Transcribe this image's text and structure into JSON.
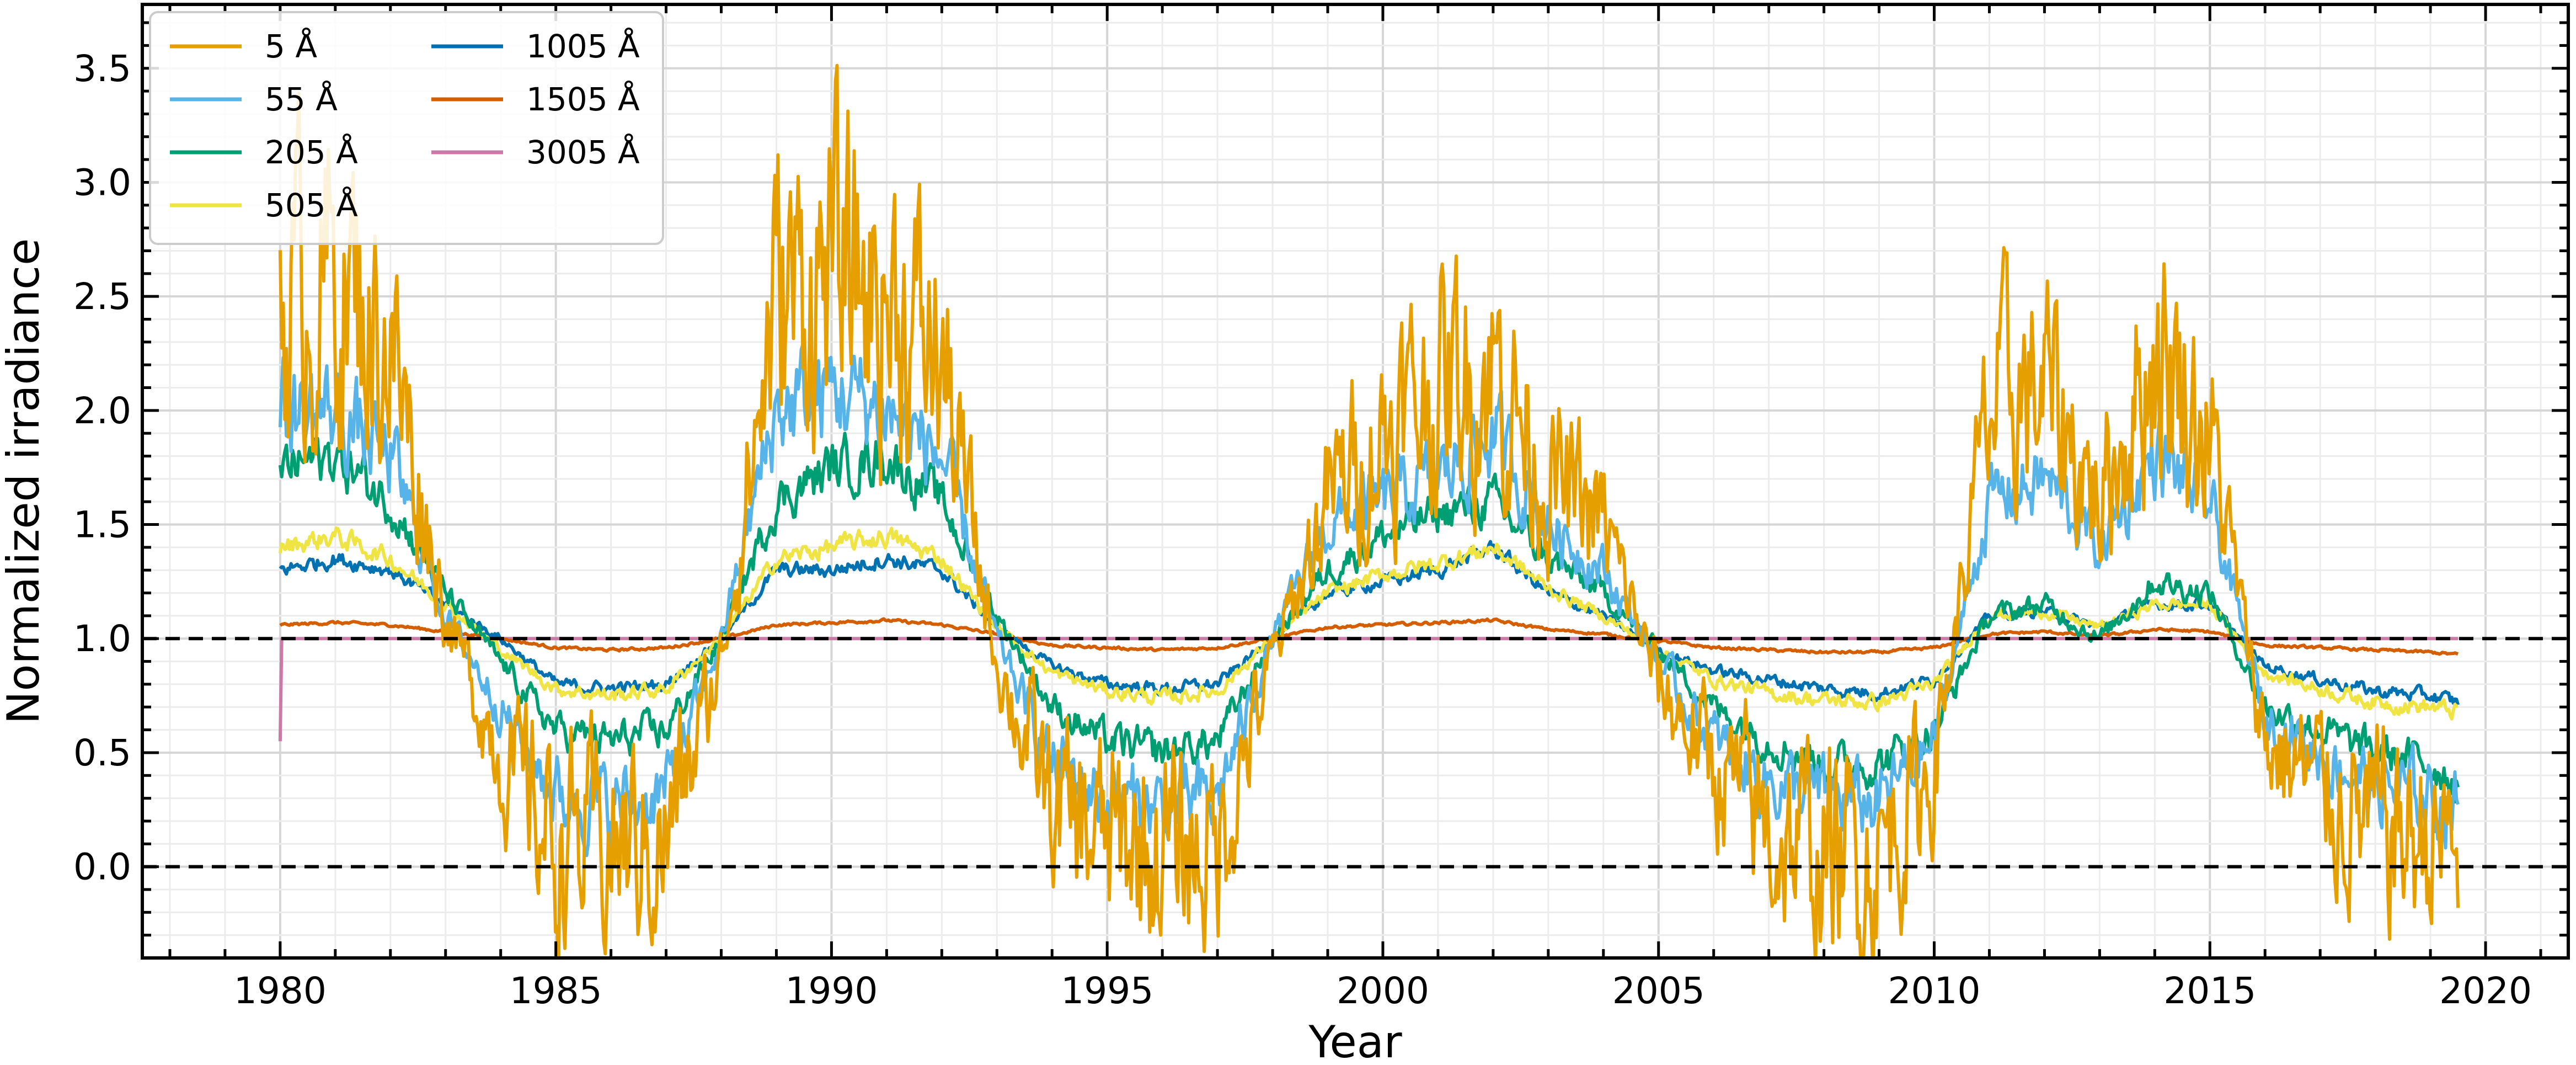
{
  "chart_data": {
    "type": "line",
    "title": "",
    "xlabel": "Year",
    "ylabel": "Normalized irradiance",
    "xlim": [
      1977.5,
      2021.5
    ],
    "ylim": [
      -0.4,
      3.78
    ],
    "xticks": [
      1980,
      1985,
      1990,
      1995,
      2000,
      2005,
      2010,
      2015,
      2020
    ],
    "yticks": [
      0.0,
      0.5,
      1.0,
      1.5,
      2.0,
      2.5,
      3.0,
      3.5
    ],
    "xtick_labels": [
      "1980",
      "1985",
      "1990",
      "1995",
      "2000",
      "2005",
      "2010",
      "2015",
      "2020"
    ],
    "ytick_labels": [
      "0.0",
      "0.5",
      "1.0",
      "1.5",
      "2.0",
      "2.5",
      "3.0",
      "3.5"
    ],
    "grid": true,
    "legend": {
      "placement": "top-left",
      "columns": 2
    },
    "reference_lines": [
      {
        "y": 1.0,
        "style": "dashed",
        "color": "#000000"
      },
      {
        "y": 0.0,
        "style": "dashed",
        "color": "#000000"
      }
    ],
    "x": [
      1980.0,
      1981.0,
      1982.0,
      1983.0,
      1984.0,
      1985.0,
      1986.0,
      1987.0,
      1988.0,
      1989.0,
      1990.0,
      1991.0,
      1992.0,
      1993.0,
      1994.0,
      1995.0,
      1996.0,
      1997.0,
      1998.0,
      1999.0,
      2000.0,
      2001.0,
      2002.0,
      2003.0,
      2004.0,
      2005.0,
      2006.0,
      2007.0,
      2008.0,
      2009.0,
      2010.0,
      2011.0,
      2012.0,
      2013.0,
      2014.0,
      2015.0,
      2016.0,
      2017.0,
      2018.0,
      2019.0,
      2019.5
    ],
    "series": [
      {
        "name": "5 Å",
        "color": "#E69F00",
        "noise": 0.55,
        "values": [
          2.5,
          2.6,
          2.3,
          1.1,
          0.5,
          0.1,
          0.08,
          0.1,
          0.9,
          2.5,
          2.6,
          2.5,
          2.2,
          0.9,
          0.25,
          0.1,
          0.06,
          0.1,
          0.9,
          1.6,
          1.9,
          2.1,
          2.2,
          1.7,
          1.5,
          0.8,
          0.45,
          0.15,
          0.05,
          0.06,
          0.45,
          2.0,
          2.1,
          1.6,
          2.3,
          1.9,
          0.55,
          0.35,
          0.15,
          0.12,
          0.08
        ]
      },
      {
        "name": "55 Å",
        "color": "#56B4E9",
        "noise": 0.25,
        "values": [
          2.0,
          2.0,
          1.8,
          1.1,
          0.7,
          0.32,
          0.27,
          0.32,
          1.0,
          2.0,
          2.1,
          2.0,
          1.8,
          1.0,
          0.45,
          0.3,
          0.26,
          0.3,
          1.0,
          1.5,
          1.6,
          1.7,
          1.9,
          1.5,
          1.3,
          0.9,
          0.55,
          0.38,
          0.3,
          0.28,
          0.55,
          1.6,
          1.7,
          1.4,
          1.8,
          1.6,
          0.65,
          0.5,
          0.35,
          0.3,
          0.27
        ]
      },
      {
        "name": "205 Å",
        "color": "#009E73",
        "noise": 0.16,
        "values": [
          1.75,
          1.8,
          1.6,
          1.2,
          0.9,
          0.6,
          0.55,
          0.6,
          1.0,
          1.6,
          1.75,
          1.8,
          1.6,
          1.1,
          0.7,
          0.55,
          0.5,
          0.55,
          1.0,
          1.3,
          1.45,
          1.55,
          1.6,
          1.35,
          1.2,
          0.95,
          0.7,
          0.55,
          0.45,
          0.45,
          0.6,
          1.1,
          1.15,
          1.0,
          1.25,
          1.2,
          0.7,
          0.6,
          0.5,
          0.45,
          0.38
        ]
      },
      {
        "name": "505 Å",
        "color": "#F0E442",
        "noise": 0.09,
        "values": [
          1.4,
          1.45,
          1.35,
          1.15,
          0.95,
          0.78,
          0.75,
          0.78,
          1.0,
          1.35,
          1.4,
          1.45,
          1.35,
          1.05,
          0.85,
          0.77,
          0.74,
          0.77,
          1.0,
          1.2,
          1.28,
          1.33,
          1.4,
          1.22,
          1.1,
          0.95,
          0.82,
          0.76,
          0.73,
          0.72,
          0.8,
          1.1,
          1.12,
          1.05,
          1.15,
          1.15,
          0.85,
          0.78,
          0.72,
          0.7,
          0.68
        ]
      },
      {
        "name": "1005 Å",
        "color": "#0072B2",
        "noise": 0.08,
        "values": [
          1.3,
          1.35,
          1.3,
          1.15,
          1.0,
          0.8,
          0.78,
          0.8,
          1.0,
          1.3,
          1.3,
          1.35,
          1.3,
          1.05,
          0.88,
          0.8,
          0.78,
          0.8,
          1.0,
          1.2,
          1.25,
          1.3,
          1.4,
          1.2,
          1.1,
          0.95,
          0.86,
          0.82,
          0.78,
          0.76,
          0.82,
          1.1,
          1.12,
          1.05,
          1.15,
          1.15,
          0.88,
          0.82,
          0.77,
          0.75,
          0.72
        ]
      },
      {
        "name": "1505 Å",
        "color": "#D55E00",
        "noise": 0.025,
        "values": [
          1.06,
          1.07,
          1.06,
          1.03,
          1.0,
          0.96,
          0.95,
          0.96,
          1.0,
          1.06,
          1.07,
          1.08,
          1.06,
          1.02,
          0.97,
          0.96,
          0.95,
          0.96,
          1.0,
          1.05,
          1.06,
          1.07,
          1.08,
          1.04,
          1.02,
          0.99,
          0.96,
          0.95,
          0.94,
          0.94,
          0.96,
          1.02,
          1.03,
          1.01,
          1.04,
          1.03,
          0.97,
          0.96,
          0.95,
          0.94,
          0.93
        ]
      },
      {
        "name": "3005 Å",
        "color": "#CC79A7",
        "noise": 0.0,
        "values": [
          1.0,
          1.0,
          1.0,
          1.0,
          1.0,
          1.0,
          1.0,
          1.0,
          1.0,
          1.0,
          1.0,
          1.0,
          1.0,
          1.0,
          1.0,
          1.0,
          1.0,
          1.0,
          1.0,
          1.0,
          1.0,
          1.0,
          1.0,
          1.0,
          1.0,
          1.0,
          1.0,
          1.0,
          1.0,
          1.0,
          1.0,
          1.0,
          1.0,
          1.0,
          1.0,
          1.0,
          1.0,
          1.0,
          1.0,
          1.0,
          1.0
        ]
      }
    ]
  }
}
